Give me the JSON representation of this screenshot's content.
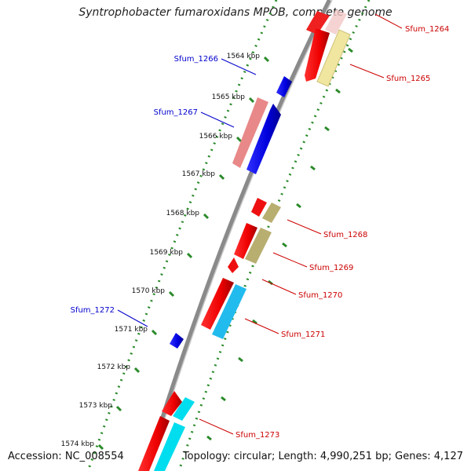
{
  "title": "Syntrophobacter fumaroxidans MPOB, complete genome",
  "footer": {
    "accession": "Accession: NC_008554",
    "summary": "Topology: circular; Length: 4,990,251 bp; Genes: 4,127"
  },
  "colors": {
    "backbone": "#888888",
    "ruler": "#2a8a2a",
    "label_forward": "#cc0000",
    "label_reverse": "#0000cc"
  },
  "ticks": [
    "1564 kbp",
    "1565 kbp",
    "1566 kbp",
    "1567 kbp",
    "1568 kbp",
    "1569 kbp",
    "1570 kbp",
    "1571 kbp",
    "1572 kbp",
    "1573 kbp",
    "1574 kbp"
  ],
  "genes": [
    {
      "id": "Sfum_1264",
      "strand": "forward",
      "color": "#e0a0a0"
    },
    {
      "id": "Sfum_1265",
      "strand": "forward",
      "color": "#f0e6a0"
    },
    {
      "id": "Sfum_1266",
      "strand": "reverse",
      "color": "#0000dd"
    },
    {
      "id": "Sfum_1267",
      "strand": "reverse",
      "color": "#0000dd"
    },
    {
      "id": "Sfum_1268",
      "strand": "forward",
      "color": "#b8ae70"
    },
    {
      "id": "Sfum_1269",
      "strand": "forward",
      "color": "#b8ae70"
    },
    {
      "id": "Sfum_1270",
      "strand": "forward",
      "color": "#ff0000"
    },
    {
      "id": "Sfum_1271",
      "strand": "forward",
      "color": "#22bbee"
    },
    {
      "id": "Sfum_1272",
      "strand": "reverse",
      "color": "#0000dd"
    },
    {
      "id": "Sfum_1273",
      "strand": "forward",
      "color": "#00ddee"
    }
  ]
}
